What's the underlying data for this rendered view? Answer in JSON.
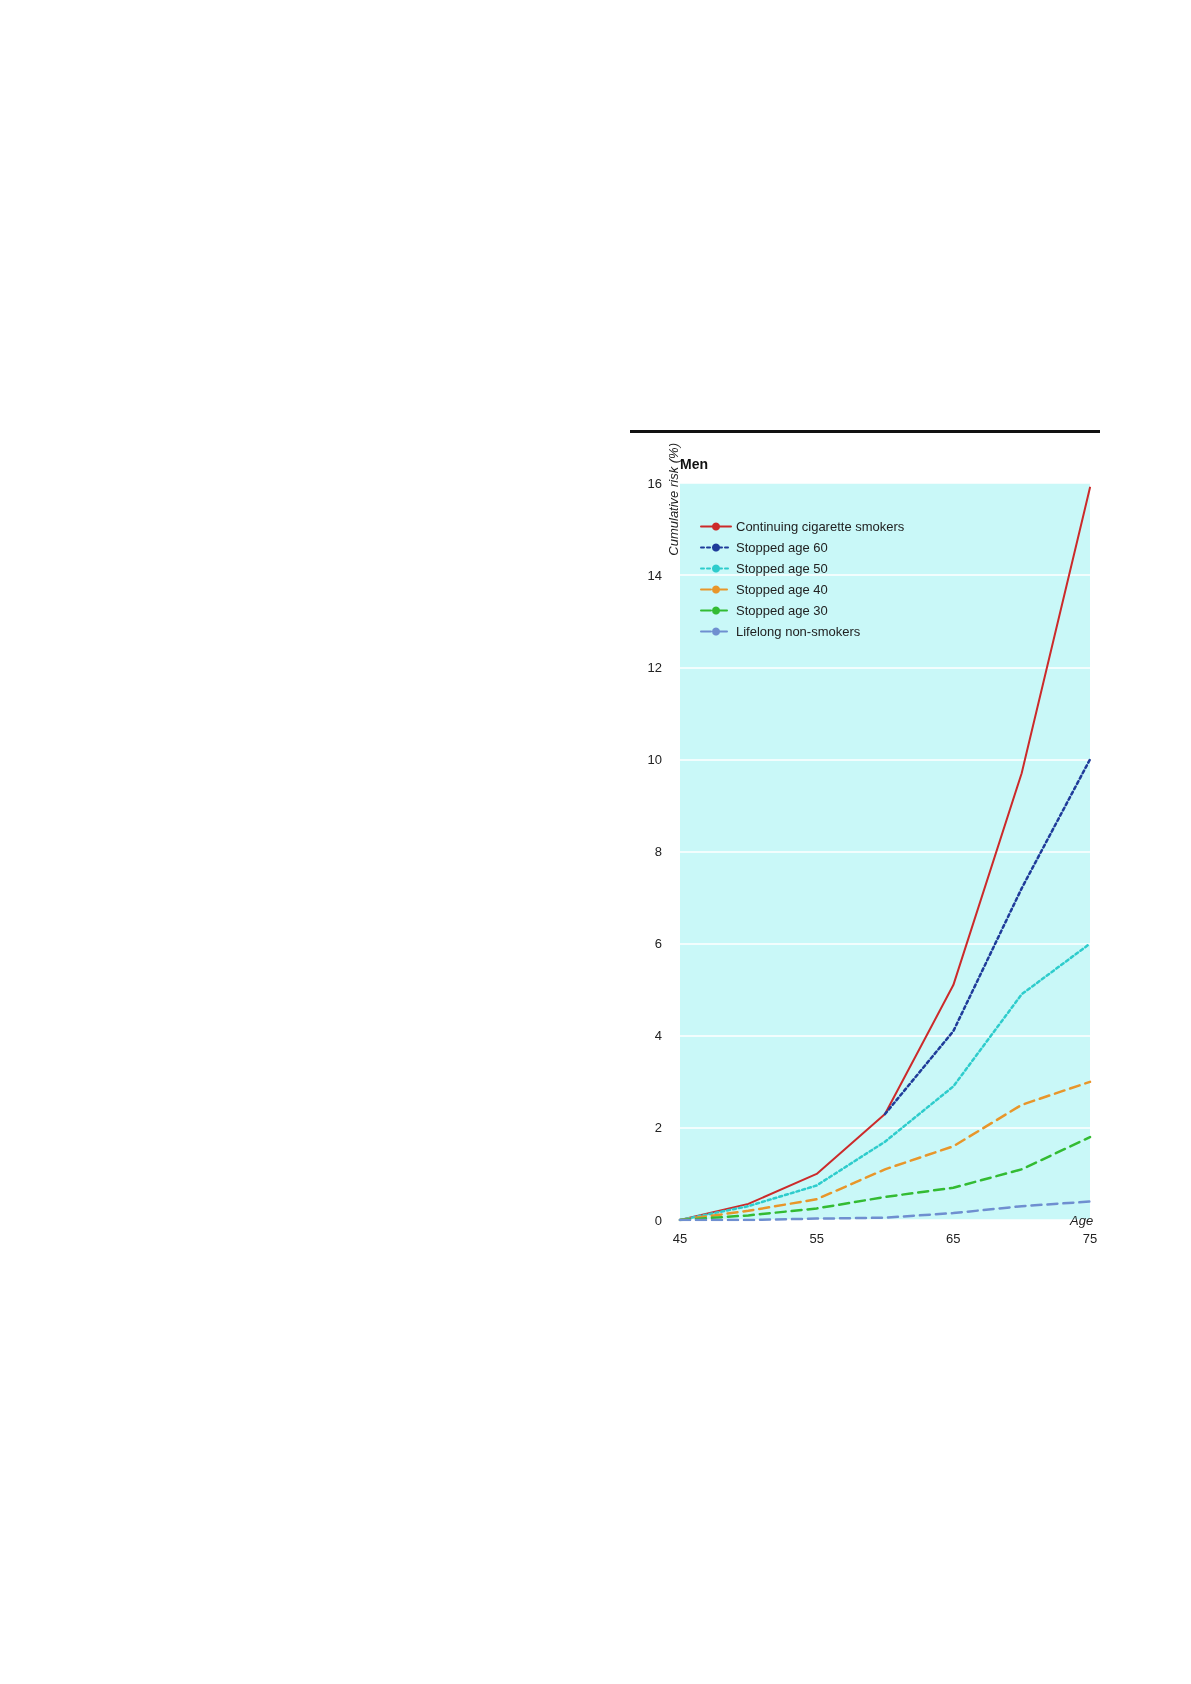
{
  "chart_data": {
    "type": "line",
    "title": "Men",
    "xlabel": "Age",
    "ylabel": "Cumulative risk (%)",
    "x": [
      45,
      50,
      55,
      60,
      65,
      70,
      75
    ],
    "series": [
      {
        "name": "Continuing cigarette smokers",
        "color": "#cc2a2a",
        "line_style": "solid",
        "values": [
          0,
          0.35,
          1,
          2.3,
          5.1,
          9.7,
          15.9
        ]
      },
      {
        "name": "Stopped age 60",
        "color": "#1f3c9a",
        "line_style": "dotted",
        "x": [
          60,
          65,
          70,
          75
        ],
        "values": [
          2.3,
          4.1,
          7.2,
          10
        ]
      },
      {
        "name": "Stopped age 50",
        "color": "#2ecccc",
        "line_style": "dotted",
        "values": [
          0,
          0.3,
          0.75,
          1.7,
          2.9,
          4.9,
          6
        ]
      },
      {
        "name": "Stopped age 40",
        "color": "#e8962a",
        "line_style": "dashed",
        "values": [
          0,
          0.2,
          0.45,
          1.1,
          1.6,
          2.5,
          3
        ]
      },
      {
        "name": "Stopped age 30",
        "color": "#33bb33",
        "line_style": "dashed",
        "values": [
          0,
          0.1,
          0.25,
          0.5,
          0.7,
          1.1,
          1.8
        ]
      },
      {
        "name": "Lifelong non-smokers",
        "color": "#6f8fd0",
        "line_style": "dashed",
        "values": [
          0,
          0,
          0.03,
          0.05,
          0.15,
          0.3,
          0.4
        ]
      }
    ],
    "xlim": [
      45,
      75
    ],
    "xticks": [
      45,
      55,
      65,
      75
    ],
    "ylim": [
      0,
      16
    ],
    "yticks": [
      0,
      2,
      4,
      6,
      8,
      10,
      12,
      14,
      16
    ],
    "grid": "y",
    "legend": "top left",
    "marker": "none"
  }
}
